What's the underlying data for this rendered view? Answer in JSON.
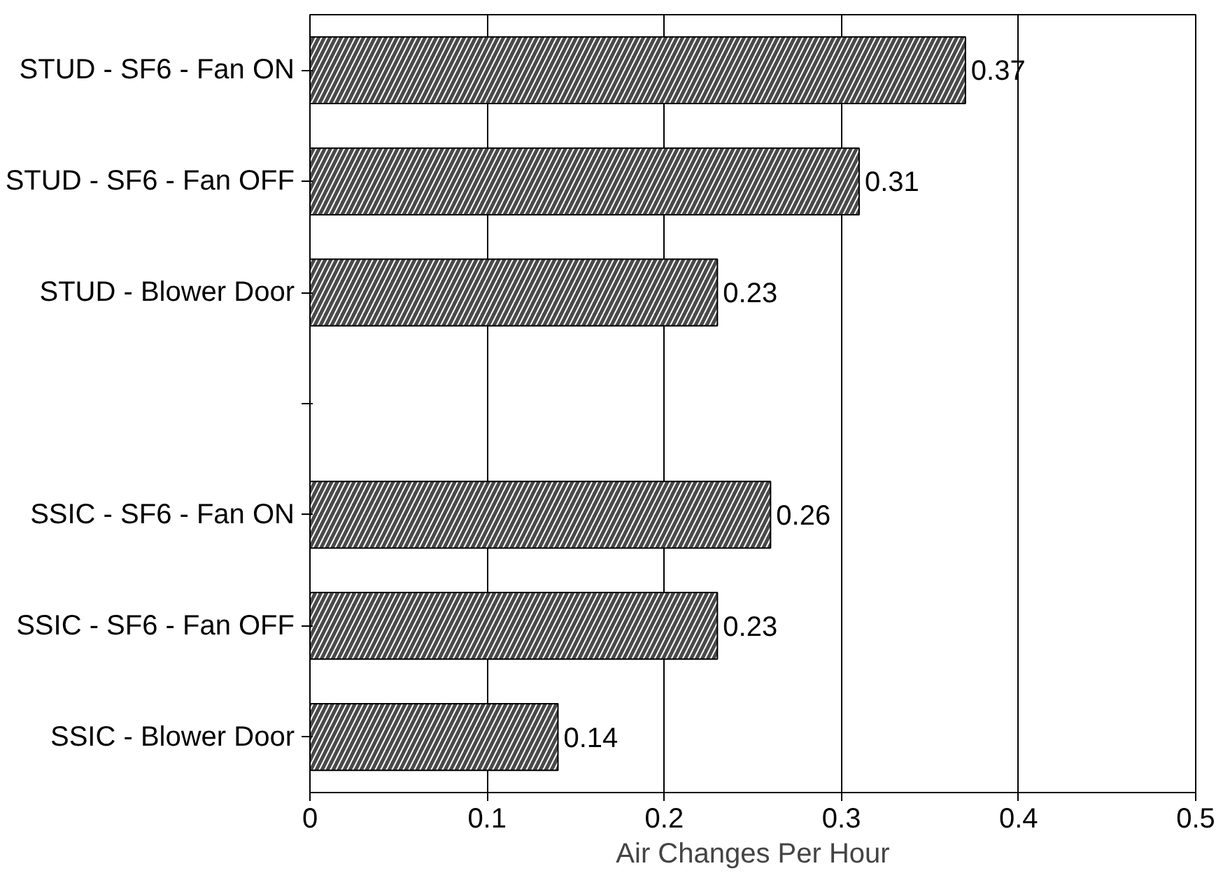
{
  "chart_data": {
    "type": "bar",
    "orientation": "horizontal",
    "xlabel": "Air Changes Per Hour",
    "categories": [
      "STUD - SF6 - Fan ON",
      "STUD - SF6 - Fan OFF",
      "STUD - Blower Door",
      null,
      "SSIC - SF6 - Fan ON",
      "SSIC - SF6 - Fan OFF",
      "SSIC - Blower Door"
    ],
    "values": [
      0.37,
      0.31,
      0.23,
      null,
      0.26,
      0.23,
      0.14
    ],
    "color": "#4a4a4a",
    "xlim": [
      0,
      0.5
    ],
    "xticks": [
      0,
      0.1,
      0.2,
      0.3,
      0.4,
      0.5
    ],
    "grid": "x",
    "data_labels": true
  }
}
